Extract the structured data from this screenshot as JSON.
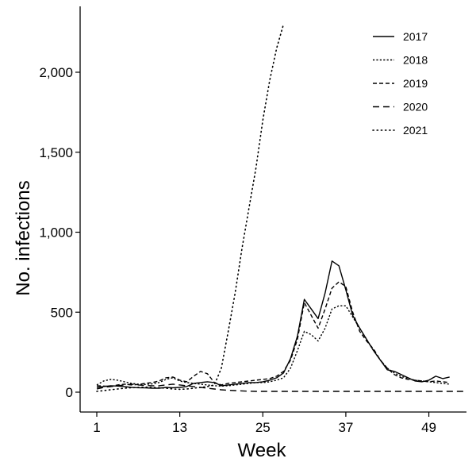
{
  "chart_data": {
    "type": "line",
    "title": "",
    "xlabel": "Week",
    "ylabel": "No. infections",
    "xlim": [
      0,
      54
    ],
    "ylim": [
      -100,
      2430
    ],
    "x_ticks": [
      1,
      13,
      25,
      37,
      49
    ],
    "x_tick_labels": [
      "1",
      "13",
      "25",
      "37",
      "49"
    ],
    "y_ticks": [
      0,
      500,
      1000,
      1500,
      2000
    ],
    "y_tick_labels": [
      "0",
      "500",
      "1,000",
      "1,500",
      "2,000"
    ],
    "grid": false,
    "legend_position": "top-right",
    "series": [
      {
        "name": "2017",
        "dash": "solid",
        "x": [
          1,
          2,
          3,
          4,
          5,
          6,
          7,
          8,
          9,
          10,
          11,
          12,
          13,
          14,
          15,
          16,
          17,
          18,
          19,
          20,
          21,
          22,
          23,
          24,
          25,
          26,
          27,
          28,
          29,
          30,
          31,
          32,
          33,
          34,
          35,
          36,
          37,
          38,
          39,
          40,
          41,
          42,
          43,
          44,
          45,
          46,
          47,
          48,
          49,
          50,
          51,
          52
        ],
        "y": [
          30,
          35,
          40,
          38,
          35,
          30,
          28,
          27,
          25,
          25,
          30,
          28,
          30,
          35,
          55,
          60,
          65,
          60,
          40,
          45,
          50,
          55,
          60,
          60,
          65,
          75,
          90,
          120,
          210,
          350,
          580,
          520,
          460,
          620,
          820,
          790,
          640,
          480,
          400,
          330,
          260,
          200,
          140,
          130,
          110,
          90,
          70,
          65,
          75,
          100,
          85,
          95
        ]
      },
      {
        "name": "2018",
        "dash": "dot-fine",
        "x": [
          1,
          2,
          3,
          4,
          5,
          6,
          7,
          8,
          9,
          10,
          11,
          12,
          13,
          14,
          15,
          16,
          17,
          18,
          19,
          20,
          21,
          22,
          23,
          24,
          25,
          26,
          27,
          28,
          29,
          30,
          31,
          32,
          33,
          34,
          35,
          36,
          37,
          38,
          39,
          40,
          41,
          42,
          43,
          44,
          45,
          46,
          47,
          48,
          49,
          50,
          51,
          52
        ],
        "y": [
          45,
          70,
          80,
          75,
          65,
          55,
          50,
          48,
          52,
          60,
          80,
          90,
          70,
          60,
          55,
          50,
          45,
          40,
          38,
          40,
          45,
          50,
          55,
          60,
          60,
          65,
          75,
          90,
          150,
          260,
          380,
          360,
          320,
          400,
          520,
          540,
          540,
          470,
          400,
          330,
          260,
          200,
          150,
          120,
          100,
          85,
          75,
          70,
          65,
          60,
          55,
          50
        ]
      },
      {
        "name": "2019",
        "dash": "dash-medium",
        "x": [
          1,
          2,
          3,
          4,
          5,
          6,
          7,
          8,
          9,
          10,
          11,
          12,
          13,
          14,
          15,
          16,
          17,
          18,
          19,
          20,
          21,
          22,
          23,
          24,
          25,
          26,
          27,
          28,
          29,
          30,
          31,
          32,
          33,
          34,
          35,
          36,
          37,
          38,
          39,
          40,
          41,
          42,
          43,
          44,
          45,
          46,
          47,
          48,
          49,
          50,
          51,
          52
        ],
        "y": [
          40,
          38,
          35,
          45,
          50,
          45,
          48,
          55,
          60,
          70,
          90,
          95,
          75,
          65,
          100,
          130,
          115,
          60,
          45,
          55,
          60,
          65,
          70,
          75,
          80,
          85,
          100,
          130,
          200,
          330,
          560,
          480,
          400,
          520,
          650,
          690,
          660,
          500,
          380,
          320,
          270,
          200,
          150,
          110,
          90,
          80,
          75,
          70,
          65,
          70,
          65,
          60
        ]
      },
      {
        "name": "2020",
        "dash": "dash-long",
        "x": [
          1,
          2,
          3,
          4,
          5,
          6,
          7,
          8,
          9,
          10,
          11,
          12,
          13,
          14,
          15,
          16,
          17,
          18,
          19,
          20,
          21,
          22,
          23,
          24,
          25,
          26,
          27,
          28,
          29,
          30,
          31,
          32,
          33,
          34,
          35,
          36,
          37,
          38,
          39,
          40,
          41,
          42,
          43,
          44,
          45,
          46,
          47,
          48,
          49,
          50,
          51,
          52,
          53,
          54
        ],
        "y": [
          20,
          30,
          35,
          40,
          45,
          50,
          45,
          42,
          40,
          40,
          45,
          50,
          45,
          40,
          35,
          30,
          25,
          20,
          15,
          12,
          10,
          8,
          6,
          5,
          5,
          5,
          5,
          5,
          5,
          5,
          5,
          5,
          5,
          5,
          5,
          5,
          5,
          5,
          5,
          5,
          5,
          5,
          5,
          5,
          5,
          5,
          5,
          5,
          5,
          5,
          5,
          5,
          5,
          5
        ]
      },
      {
        "name": "2021",
        "dash": "dot-sparse",
        "x": [
          1,
          2,
          3,
          4,
          5,
          6,
          7,
          8,
          9,
          10,
          11,
          12,
          13,
          14,
          15,
          16,
          17,
          18,
          19,
          20,
          21,
          22,
          23,
          24,
          25,
          26,
          27,
          28
        ],
        "y": [
          5,
          10,
          15,
          20,
          25,
          28,
          30,
          32,
          30,
          28,
          25,
          20,
          18,
          20,
          25,
          30,
          35,
          45,
          150,
          380,
          620,
          900,
          1150,
          1400,
          1700,
          1950,
          2150,
          2300
        ]
      }
    ]
  }
}
